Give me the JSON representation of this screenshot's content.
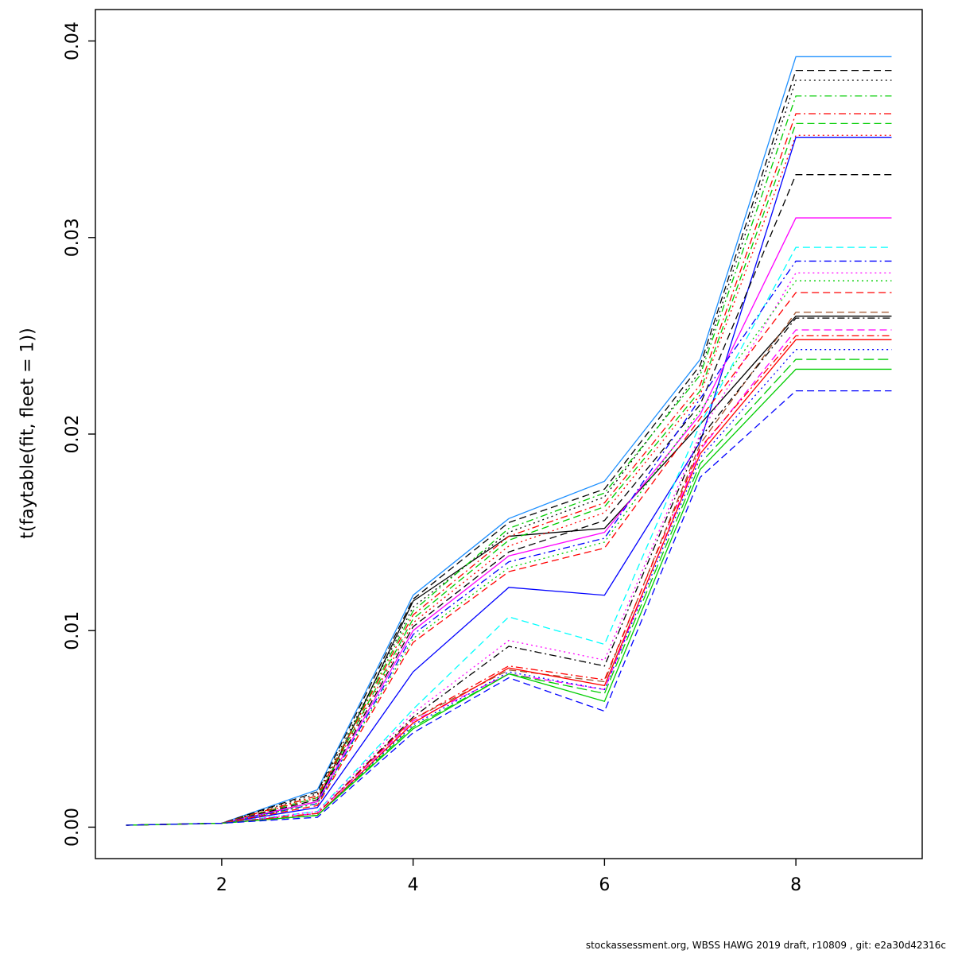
{
  "chart_data": {
    "type": "line",
    "title": "",
    "xlabel": "",
    "ylabel": "t(faytable(fit, fleet = 1))",
    "footer": "stockassessment.org, WBSS HAWG 2019 draft, r10809 , git: e2a30d42316c",
    "x": [
      1,
      2,
      3,
      4,
      5,
      6,
      7,
      8,
      9
    ],
    "xticks": [
      2,
      4,
      6,
      8
    ],
    "yticks": [
      0,
      0.01,
      0.02,
      0.03,
      0.04
    ],
    "ytick_labels": [
      "0.00",
      "0.01",
      "0.02",
      "0.03",
      "0.04"
    ],
    "xlim": [
      1,
      9
    ],
    "ylim": [
      0,
      0.04
    ],
    "grid": false,
    "legend": "none",
    "axis_color": "#000000",
    "series": [
      {
        "color": "#000000",
        "linetype": "solid",
        "values": [
          0.0001,
          0.0002,
          0.0013,
          0.0115,
          0.0148,
          0.0152,
          0.0205,
          0.026,
          0.026
        ]
      },
      {
        "color": "#1E90FF",
        "linetype": "solid",
        "values": [
          0.0001,
          0.0002,
          0.0019,
          0.0118,
          0.0157,
          0.0176,
          0.0238,
          0.0392,
          0.0392
        ]
      },
      {
        "color": "#000000",
        "linetype": "dashed",
        "values": [
          0.0001,
          0.0002,
          0.0018,
          0.0116,
          0.0155,
          0.0172,
          0.0235,
          0.0385,
          0.0385
        ]
      },
      {
        "color": "#000000",
        "linetype": "dotted",
        "values": [
          0.0001,
          0.0002,
          0.0017,
          0.0112,
          0.015,
          0.0168,
          0.0232,
          0.038,
          0.038
        ]
      },
      {
        "color": "#00CD00",
        "linetype": "dotdash",
        "values": [
          0.0001,
          0.0002,
          0.0016,
          0.011,
          0.0152,
          0.017,
          0.023,
          0.0372,
          0.0372
        ]
      },
      {
        "color": "#FF0000",
        "linetype": "dotdash",
        "values": [
          0.0001,
          0.0002,
          0.0016,
          0.0108,
          0.0148,
          0.0165,
          0.0225,
          0.0363,
          0.0363
        ]
      },
      {
        "color": "#00CD00",
        "linetype": "dashed",
        "values": [
          0.0001,
          0.0002,
          0.0015,
          0.0106,
          0.0146,
          0.0163,
          0.0222,
          0.0358,
          0.0358
        ]
      },
      {
        "color": "#FF0000",
        "linetype": "dotted",
        "values": [
          0.0001,
          0.0002,
          0.0015,
          0.0104,
          0.0143,
          0.016,
          0.022,
          0.0352,
          0.0352
        ]
      },
      {
        "color": "#0000FF",
        "linetype": "solid",
        "values": [
          0.0001,
          0.0002,
          0.001,
          0.0079,
          0.0122,
          0.0118,
          0.0196,
          0.0351,
          0.0351
        ]
      },
      {
        "color": "#000000",
        "linetype": "dashed",
        "values": [
          0.0001,
          0.0002,
          0.0014,
          0.0102,
          0.014,
          0.0156,
          0.0215,
          0.0332,
          0.0332
        ]
      },
      {
        "color": "#FF00FF",
        "linetype": "solid",
        "values": [
          0.0001,
          0.0002,
          0.0013,
          0.01,
          0.0138,
          0.015,
          0.021,
          0.031,
          0.031
        ]
      },
      {
        "color": "#00FFFF",
        "linetype": "dashed",
        "values": [
          0.0001,
          0.0002,
          0.0008,
          0.006,
          0.0107,
          0.0093,
          0.0205,
          0.0295,
          0.0295
        ]
      },
      {
        "color": "#0000FF",
        "linetype": "dotdash",
        "values": [
          0.0001,
          0.0002,
          0.0012,
          0.0098,
          0.0135,
          0.0147,
          0.0218,
          0.0288,
          0.0288
        ]
      },
      {
        "color": "#FF00FF",
        "linetype": "dotted",
        "values": [
          0.0001,
          0.0002,
          0.0008,
          0.0058,
          0.0095,
          0.0085,
          0.02,
          0.0282,
          0.0282
        ]
      },
      {
        "color": "#00CD00",
        "linetype": "dotted",
        "values": [
          0.0001,
          0.0002,
          0.0012,
          0.0096,
          0.0132,
          0.0145,
          0.0212,
          0.0278,
          0.0278
        ]
      },
      {
        "color": "#FF0000",
        "linetype": "dashed",
        "values": [
          0.0001,
          0.0002,
          0.0011,
          0.0094,
          0.013,
          0.0142,
          0.0208,
          0.0272,
          0.0272
        ]
      },
      {
        "color": "#A0522D",
        "linetype": "dashed",
        "values": [
          0.0001,
          0.0002,
          0.0007,
          0.0055,
          0.008,
          0.0074,
          0.0195,
          0.0262,
          0.0262
        ]
      },
      {
        "color": "#000000",
        "linetype": "dotdash",
        "values": [
          0.0001,
          0.0002,
          0.0007,
          0.0056,
          0.0092,
          0.0082,
          0.0198,
          0.0259,
          0.0259
        ]
      },
      {
        "color": "#FF00FF",
        "linetype": "dashed",
        "values": [
          0.0001,
          0.0002,
          0.0007,
          0.0054,
          0.0078,
          0.007,
          0.0192,
          0.0253,
          0.0253
        ]
      },
      {
        "color": "#FF0000",
        "linetype": "dotdash",
        "values": [
          0.0001,
          0.0002,
          0.0007,
          0.0055,
          0.0082,
          0.0075,
          0.0193,
          0.025,
          0.025
        ]
      },
      {
        "color": "#FF0000",
        "linetype": "solid",
        "values": [
          0.0001,
          0.0002,
          0.0006,
          0.0053,
          0.0081,
          0.0072,
          0.019,
          0.0248,
          0.0248
        ]
      },
      {
        "color": "#0000FF",
        "linetype": "dotted",
        "values": [
          0.0001,
          0.0002,
          0.0006,
          0.0052,
          0.0079,
          0.007,
          0.0188,
          0.0243,
          0.0243
        ]
      },
      {
        "color": "#00CD00",
        "linetype": "longdash",
        "values": [
          0.0001,
          0.0002,
          0.0006,
          0.0051,
          0.0078,
          0.0068,
          0.0185,
          0.0238,
          0.0238
        ]
      },
      {
        "color": "#00CD00",
        "linetype": "solid",
        "values": [
          0.0001,
          0.0002,
          0.0006,
          0.005,
          0.0078,
          0.0064,
          0.0182,
          0.0233,
          0.0233
        ]
      },
      {
        "color": "#0000FF",
        "linetype": "dashed",
        "values": [
          0.0001,
          0.0002,
          0.0005,
          0.0048,
          0.0076,
          0.0059,
          0.0178,
          0.0222,
          0.0222
        ]
      }
    ]
  }
}
